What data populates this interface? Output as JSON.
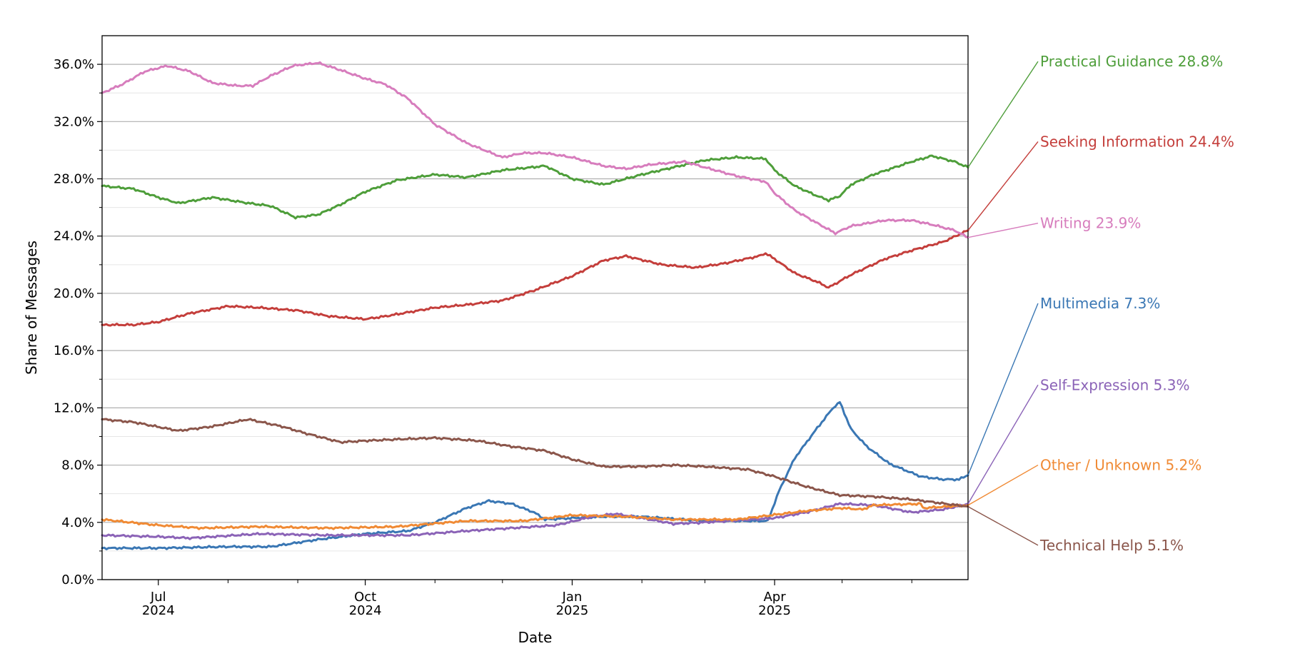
{
  "chart_data": {
    "type": "line",
    "xlabel": "Date",
    "ylabel": "Share of Messages",
    "x_range": [
      "2024-06-06",
      "2025-06-26"
    ],
    "ylim": [
      0,
      38
    ],
    "y_ticks": [
      {
        "value": 0,
        "label": "0.0%"
      },
      {
        "value": 4,
        "label": "4.0%"
      },
      {
        "value": 8,
        "label": "8.0%"
      },
      {
        "value": 12,
        "label": "12.0%"
      },
      {
        "value": 16,
        "label": "16.0%"
      },
      {
        "value": 20,
        "label": "20.0%"
      },
      {
        "value": 24,
        "label": "24.0%"
      },
      {
        "value": 28,
        "label": "28.0%"
      },
      {
        "value": 32,
        "label": "32.0%"
      },
      {
        "value": 36,
        "label": "36.0%"
      }
    ],
    "y_minor_ticks": [
      2,
      6,
      10,
      14,
      18,
      22,
      26,
      30,
      34
    ],
    "x_major_ticks": [
      {
        "date": "2024-07-01",
        "label": "Jul",
        "year": "2024"
      },
      {
        "date": "2024-10-01",
        "label": "Oct",
        "year": "2024"
      },
      {
        "date": "2025-01-01",
        "label": "Jan",
        "year": "2025"
      },
      {
        "date": "2025-04-01",
        "label": "Apr",
        "year": "2025"
      }
    ],
    "x_minor_ticks": [
      "2024-08-01",
      "2024-09-01",
      "2024-11-01",
      "2024-12-01",
      "2025-02-01",
      "2025-03-01",
      "2025-05-01",
      "2025-06-01"
    ],
    "grid": "horizontal",
    "legend": "end labels on right",
    "series": [
      {
        "name": "Practical Guidance",
        "value_label": "28.8%",
        "color": "#4e9e3a",
        "final": 28.8,
        "points": [
          [
            "2024-06-06",
            27.5
          ],
          [
            "2024-06-20",
            27.3
          ],
          [
            "2024-07-01",
            26.7
          ],
          [
            "2024-07-10",
            26.3
          ],
          [
            "2024-07-25",
            26.7
          ],
          [
            "2024-08-10",
            26.3
          ],
          [
            "2024-08-20",
            26.1
          ],
          [
            "2024-08-31",
            25.3
          ],
          [
            "2024-09-10",
            25.5
          ],
          [
            "2024-09-20",
            26.2
          ],
          [
            "2024-10-01",
            27.1
          ],
          [
            "2024-10-15",
            27.9
          ],
          [
            "2024-11-01",
            28.3
          ],
          [
            "2024-11-15",
            28.1
          ],
          [
            "2024-12-01",
            28.6
          ],
          [
            "2024-12-20",
            28.9
          ],
          [
            "2025-01-01",
            28.0
          ],
          [
            "2025-01-15",
            27.6
          ],
          [
            "2025-02-01",
            28.3
          ],
          [
            "2025-02-15",
            28.8
          ],
          [
            "2025-03-01",
            29.3
          ],
          [
            "2025-03-15",
            29.5
          ],
          [
            "2025-03-28",
            29.4
          ],
          [
            "2025-04-01",
            28.6
          ],
          [
            "2025-04-10",
            27.5
          ],
          [
            "2025-04-20",
            26.8
          ],
          [
            "2025-04-25",
            26.5
          ],
          [
            "2025-04-30",
            26.8
          ],
          [
            "2025-05-05",
            27.6
          ],
          [
            "2025-05-15",
            28.3
          ],
          [
            "2025-06-01",
            29.2
          ],
          [
            "2025-06-10",
            29.6
          ],
          [
            "2025-06-20",
            29.2
          ],
          [
            "2025-06-26",
            28.8
          ]
        ]
      },
      {
        "name": "Seeking Information",
        "value_label": "24.4%",
        "color": "#c43e3b",
        "final": 24.4,
        "points": [
          [
            "2024-06-06",
            17.8
          ],
          [
            "2024-06-20",
            17.8
          ],
          [
            "2024-07-01",
            18.0
          ],
          [
            "2024-07-15",
            18.6
          ],
          [
            "2024-08-01",
            19.1
          ],
          [
            "2024-08-15",
            19.0
          ],
          [
            "2024-09-01",
            18.8
          ],
          [
            "2024-09-15",
            18.4
          ],
          [
            "2024-10-01",
            18.2
          ],
          [
            "2024-10-10",
            18.4
          ],
          [
            "2024-11-01",
            19.0
          ],
          [
            "2024-11-15",
            19.2
          ],
          [
            "2024-12-01",
            19.5
          ],
          [
            "2024-12-15",
            20.2
          ],
          [
            "2025-01-01",
            21.2
          ],
          [
            "2025-01-15",
            22.3
          ],
          [
            "2025-01-25",
            22.6
          ],
          [
            "2025-02-10",
            22.0
          ],
          [
            "2025-02-25",
            21.8
          ],
          [
            "2025-03-10",
            22.1
          ],
          [
            "2025-03-25",
            22.6
          ],
          [
            "2025-03-28",
            22.8
          ],
          [
            "2025-04-01",
            22.4
          ],
          [
            "2025-04-10",
            21.4
          ],
          [
            "2025-04-20",
            20.8
          ],
          [
            "2025-04-25",
            20.4
          ],
          [
            "2025-05-05",
            21.3
          ],
          [
            "2025-05-20",
            22.4
          ],
          [
            "2025-06-01",
            23.0
          ],
          [
            "2025-06-15",
            23.6
          ],
          [
            "2025-06-26",
            24.4
          ]
        ]
      },
      {
        "name": "Writing",
        "value_label": "23.9%",
        "color": "#d77dbd",
        "final": 23.9,
        "points": [
          [
            "2024-06-06",
            34.0
          ],
          [
            "2024-06-15",
            34.6
          ],
          [
            "2024-06-25",
            35.5
          ],
          [
            "2024-07-05",
            35.9
          ],
          [
            "2024-07-15",
            35.5
          ],
          [
            "2024-07-25",
            34.7
          ],
          [
            "2024-08-05",
            34.5
          ],
          [
            "2024-08-12",
            34.5
          ],
          [
            "2024-08-20",
            35.2
          ],
          [
            "2024-08-30",
            35.9
          ],
          [
            "2024-09-10",
            36.1
          ],
          [
            "2024-09-20",
            35.6
          ],
          [
            "2024-10-01",
            35.0
          ],
          [
            "2024-10-10",
            34.6
          ],
          [
            "2024-10-20",
            33.6
          ],
          [
            "2024-11-01",
            31.8
          ],
          [
            "2024-11-15",
            30.5
          ],
          [
            "2024-12-01",
            29.5
          ],
          [
            "2024-12-10",
            29.8
          ],
          [
            "2024-12-20",
            29.8
          ],
          [
            "2025-01-01",
            29.5
          ],
          [
            "2025-01-15",
            28.9
          ],
          [
            "2025-01-25",
            28.7
          ],
          [
            "2025-02-05",
            29.0
          ],
          [
            "2025-02-20",
            29.2
          ],
          [
            "2025-03-01",
            28.8
          ],
          [
            "2025-03-15",
            28.2
          ],
          [
            "2025-03-28",
            27.8
          ],
          [
            "2025-04-01",
            27.0
          ],
          [
            "2025-04-10",
            25.8
          ],
          [
            "2025-04-20",
            24.9
          ],
          [
            "2025-04-28",
            24.2
          ],
          [
            "2025-05-05",
            24.7
          ],
          [
            "2025-05-20",
            25.1
          ],
          [
            "2025-06-01",
            25.1
          ],
          [
            "2025-06-10",
            24.8
          ],
          [
            "2025-06-20",
            24.4
          ],
          [
            "2025-06-26",
            23.9
          ]
        ]
      },
      {
        "name": "Multimedia",
        "value_label": "7.3%",
        "color": "#3a77b4",
        "final": 7.3,
        "points": [
          [
            "2024-06-06",
            2.2
          ],
          [
            "2024-07-01",
            2.2
          ],
          [
            "2024-08-01",
            2.3
          ],
          [
            "2024-08-20",
            2.3
          ],
          [
            "2024-09-10",
            2.8
          ],
          [
            "2024-10-01",
            3.2
          ],
          [
            "2024-10-20",
            3.4
          ],
          [
            "2024-11-01",
            4.0
          ],
          [
            "2024-11-15",
            5.0
          ],
          [
            "2024-11-25",
            5.5
          ],
          [
            "2024-12-05",
            5.3
          ],
          [
            "2024-12-15",
            4.7
          ],
          [
            "2024-12-20",
            4.2
          ],
          [
            "2025-01-01",
            4.3
          ],
          [
            "2025-01-15",
            4.4
          ],
          [
            "2025-02-01",
            4.4
          ],
          [
            "2025-03-01",
            4.1
          ],
          [
            "2025-03-29",
            4.1
          ],
          [
            "2025-04-03",
            6.2
          ],
          [
            "2025-04-10",
            8.5
          ],
          [
            "2025-04-20",
            10.6
          ],
          [
            "2025-04-27",
            12.0
          ],
          [
            "2025-04-30",
            12.4
          ],
          [
            "2025-05-05",
            10.5
          ],
          [
            "2025-05-12",
            9.3
          ],
          [
            "2025-05-22",
            8.1
          ],
          [
            "2025-06-05",
            7.2
          ],
          [
            "2025-06-15",
            7.0
          ],
          [
            "2025-06-22",
            7.0
          ],
          [
            "2025-06-26",
            7.3
          ]
        ]
      },
      {
        "name": "Self-Expression",
        "value_label": "5.3%",
        "color": "#8b63b7",
        "final": 5.3,
        "points": [
          [
            "2024-06-06",
            3.1
          ],
          [
            "2024-07-01",
            3.0
          ],
          [
            "2024-07-15",
            2.9
          ],
          [
            "2024-08-15",
            3.2
          ],
          [
            "2024-09-15",
            3.1
          ],
          [
            "2024-10-01",
            3.1
          ],
          [
            "2024-10-20",
            3.1
          ],
          [
            "2024-11-15",
            3.4
          ],
          [
            "2024-12-15",
            3.7
          ],
          [
            "2024-12-25",
            3.8
          ],
          [
            "2025-01-10",
            4.4
          ],
          [
            "2025-01-20",
            4.6
          ],
          [
            "2025-02-01",
            4.3
          ],
          [
            "2025-02-15",
            3.9
          ],
          [
            "2025-03-01",
            4.0
          ],
          [
            "2025-04-01",
            4.3
          ],
          [
            "2025-04-15",
            4.7
          ],
          [
            "2025-04-30",
            5.3
          ],
          [
            "2025-05-15",
            5.2
          ],
          [
            "2025-06-01",
            4.7
          ],
          [
            "2025-06-15",
            4.9
          ],
          [
            "2025-06-26",
            5.3
          ]
        ]
      },
      {
        "name": "Other / Unknown",
        "value_label": "5.2%",
        "color": "#f08a34",
        "final": 5.2,
        "points": [
          [
            "2024-06-06",
            4.2
          ],
          [
            "2024-07-01",
            3.8
          ],
          [
            "2024-07-20",
            3.6
          ],
          [
            "2024-08-15",
            3.7
          ],
          [
            "2024-09-15",
            3.6
          ],
          [
            "2024-10-15",
            3.7
          ],
          [
            "2024-11-15",
            4.1
          ],
          [
            "2024-12-10",
            4.1
          ],
          [
            "2025-01-01",
            4.5
          ],
          [
            "2025-01-25",
            4.4
          ],
          [
            "2025-02-15",
            4.2
          ],
          [
            "2025-03-15",
            4.2
          ],
          [
            "2025-04-15",
            4.8
          ],
          [
            "2025-05-01",
            5.0
          ],
          [
            "2025-05-10",
            4.9
          ],
          [
            "2025-05-15",
            5.2
          ],
          [
            "2025-06-05",
            5.3
          ],
          [
            "2025-06-06",
            5.0
          ],
          [
            "2025-06-26",
            5.2
          ]
        ]
      },
      {
        "name": "Technical Help",
        "value_label": "5.1%",
        "color": "#8b564b",
        "final": 5.1,
        "points": [
          [
            "2024-06-06",
            11.2
          ],
          [
            "2024-06-20",
            11.0
          ],
          [
            "2024-07-10",
            10.4
          ],
          [
            "2024-07-25",
            10.7
          ],
          [
            "2024-08-10",
            11.2
          ],
          [
            "2024-08-25",
            10.7
          ],
          [
            "2024-09-05",
            10.2
          ],
          [
            "2024-09-20",
            9.6
          ],
          [
            "2024-10-01",
            9.7
          ],
          [
            "2024-10-15",
            9.8
          ],
          [
            "2024-11-01",
            9.9
          ],
          [
            "2024-11-20",
            9.7
          ],
          [
            "2024-12-05",
            9.3
          ],
          [
            "2024-12-20",
            9.0
          ],
          [
            "2025-01-01",
            8.4
          ],
          [
            "2025-01-15",
            7.9
          ],
          [
            "2025-02-01",
            7.9
          ],
          [
            "2025-02-15",
            8.0
          ],
          [
            "2025-03-01",
            7.9
          ],
          [
            "2025-03-20",
            7.7
          ],
          [
            "2025-04-01",
            7.2
          ],
          [
            "2025-04-15",
            6.5
          ],
          [
            "2025-04-30",
            5.9
          ],
          [
            "2025-05-15",
            5.8
          ],
          [
            "2025-06-01",
            5.6
          ],
          [
            "2025-06-26",
            5.1
          ]
        ]
      }
    ],
    "end_labels": [
      {
        "series": "Practical Guidance",
        "label_value": 36.2
      },
      {
        "series": "Seeking Information",
        "label_value": 30.6
      },
      {
        "series": "Writing",
        "label_value": 24.9
      },
      {
        "series": "Multimedia",
        "label_value": 19.3
      },
      {
        "series": "Self-Expression",
        "label_value": 13.6
      },
      {
        "series": "Other / Unknown",
        "label_value": 8.0
      },
      {
        "series": "Technical Help",
        "label_value": 2.4
      }
    ]
  }
}
